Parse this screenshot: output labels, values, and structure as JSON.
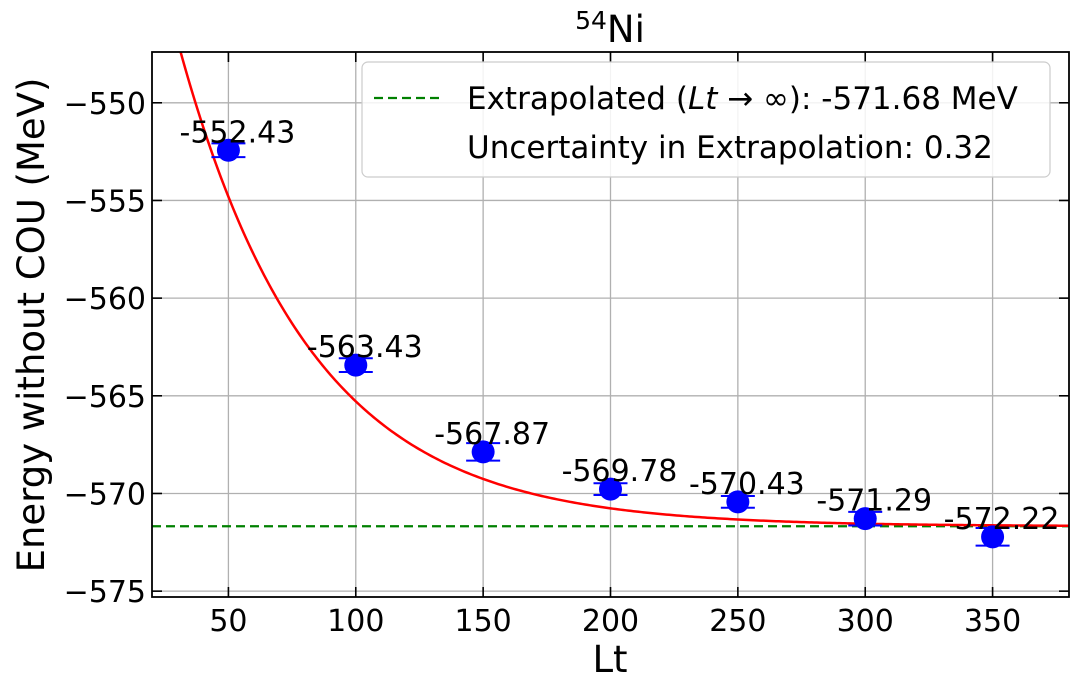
{
  "chart_data": {
    "type": "scatter",
    "title_base": "Ni",
    "title_superscript": "54",
    "xlabel": "Lt",
    "ylabel": "Energy without COU (MeV)",
    "xlim": [
      20,
      380
    ],
    "ylim": [
      -575.3,
      -547.4
    ],
    "xticks": [
      50,
      100,
      150,
      200,
      250,
      300,
      350
    ],
    "yticks": [
      -550,
      -555,
      -560,
      -565,
      -570,
      -575
    ],
    "xtick_labels": [
      "50",
      "100",
      "150",
      "200",
      "250",
      "300",
      "350"
    ],
    "ytick_labels": [
      "−550",
      "−555",
      "−560",
      "−565",
      "−570",
      "−575"
    ],
    "grid": true,
    "legend_position": "top-right",
    "series": [
      {
        "kind": "points",
        "x": [
          50,
          100,
          150,
          200,
          250,
          300,
          350
        ],
        "y": [
          -552.43,
          -563.43,
          -567.87,
          -569.78,
          -570.43,
          -571.29,
          -572.22
        ],
        "yerr": [
          0.35,
          0.35,
          0.45,
          0.3,
          0.3,
          0.35,
          0.45
        ],
        "point_labels": [
          "-552.43",
          "-563.43",
          "-567.87",
          "-569.78",
          "-570.43",
          "-571.29",
          "-572.22"
        ],
        "color": "#0000ff"
      },
      {
        "kind": "fit-curve",
        "model": "exponential",
        "asymptote": -571.68,
        "amplitude": 44.5,
        "rate": 0.0194,
        "color": "#ff0000"
      },
      {
        "kind": "hline",
        "y": -571.68,
        "color": "#008000",
        "style": "dashed"
      }
    ],
    "legend": {
      "line1_prefix": "Extrapolated (",
      "line1_math": "Lt",
      "line1_arrow": " → ∞",
      "line1_suffix": "): -571.68 MeV",
      "line2": "Uncertainty in Extrapolation: 0.32"
    }
  }
}
